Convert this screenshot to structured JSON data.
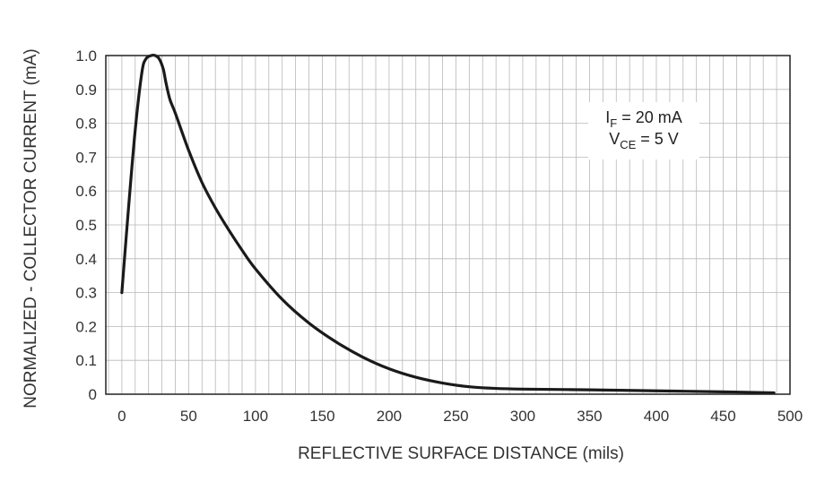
{
  "chart_data": {
    "type": "line",
    "title": "",
    "xlabel": "REFLECTIVE SURFACE DISTANCE (mils)",
    "ylabel": "NORMALIZED - COLLECTOR CURRENT (mA)",
    "xlim": [
      -12,
      500
    ],
    "ylim": [
      0,
      1.0
    ],
    "x_ticks": [
      0,
      50,
      100,
      150,
      200,
      250,
      300,
      350,
      400,
      450,
      500
    ],
    "x_tick_labels": [
      "0",
      "50",
      "100",
      "150",
      "200",
      "250",
      "300",
      "350",
      "400",
      "450",
      "500"
    ],
    "y_ticks": [
      0,
      0.1,
      0.2,
      0.3,
      0.4,
      0.5,
      0.6,
      0.7,
      0.8,
      0.9,
      1.0
    ],
    "y_tick_labels": [
      "0",
      "0.1",
      "0.2",
      "0.3",
      "0.4",
      "0.5",
      "0.6",
      "0.7",
      "0.8",
      "0.9",
      "1.0"
    ],
    "grid": {
      "x_minor_step": 10,
      "y_step": 0.1
    },
    "annotations": [
      {
        "prefix": "I",
        "sub": "F",
        "suffix": " = 20 mA"
      },
      {
        "prefix": "V",
        "sub": "CE",
        "suffix": " = 5 V"
      }
    ],
    "series": [
      {
        "name": "Normalized collector current",
        "x": [
          0,
          5,
          10,
          15,
          18,
          22,
          25,
          28,
          31,
          33,
          36,
          40,
          50,
          60,
          70,
          80,
          90,
          100,
          120,
          140,
          160,
          180,
          200,
          220,
          240,
          260,
          280,
          300,
          350,
          400,
          450,
          488
        ],
        "y": [
          0.3,
          0.55,
          0.78,
          0.95,
          0.99,
          1.0,
          1.0,
          0.99,
          0.96,
          0.92,
          0.87,
          0.83,
          0.72,
          0.625,
          0.55,
          0.485,
          0.425,
          0.37,
          0.28,
          0.21,
          0.155,
          0.11,
          0.075,
          0.05,
          0.033,
          0.022,
          0.017,
          0.015,
          0.013,
          0.01,
          0.007,
          0.004
        ]
      }
    ]
  }
}
